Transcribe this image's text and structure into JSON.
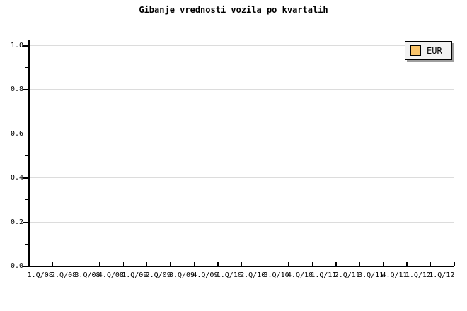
{
  "chart_data": {
    "type": "line",
    "title": "Gibanje vrednosti vozila po kvartalih",
    "x_categories": [
      "1.Q/08",
      "2.Q/08",
      "3.Q/08",
      "4.Q/08",
      "1.Q/09",
      "2.Q/09",
      "3.Q/09",
      "4.Q/09",
      "1.Q/10",
      "2.Q/10",
      "3.Q/10",
      "4.Q/10",
      "1.Q/11",
      "2.Q/11",
      "3.Q/11",
      "4.Q/11",
      "1.Q/12",
      "1.Q/12"
    ],
    "y_tick_labels": [
      "1.0",
      "0.8",
      "0.6",
      "0.4",
      "0.2",
      "0.0"
    ],
    "ylim": [
      0.0,
      1.0
    ],
    "y_major_step": 0.2,
    "y_minor_step": 0.1,
    "xlabel": "",
    "ylabel": "",
    "grid": "horizontal-major",
    "legend_position": "top-right",
    "series": [
      {
        "name": "EUR",
        "color": "#F9C46B",
        "values": []
      }
    ],
    "colors": {
      "background": "#FFFFFF",
      "axis": "#000000",
      "gridline": "#DCDCDC",
      "text": "#000000",
      "legend_bg": "#F2F2F2",
      "legend_border": "#000000",
      "legend_shadow": "#9E9E9E",
      "swatch": "#F9C46B"
    }
  }
}
